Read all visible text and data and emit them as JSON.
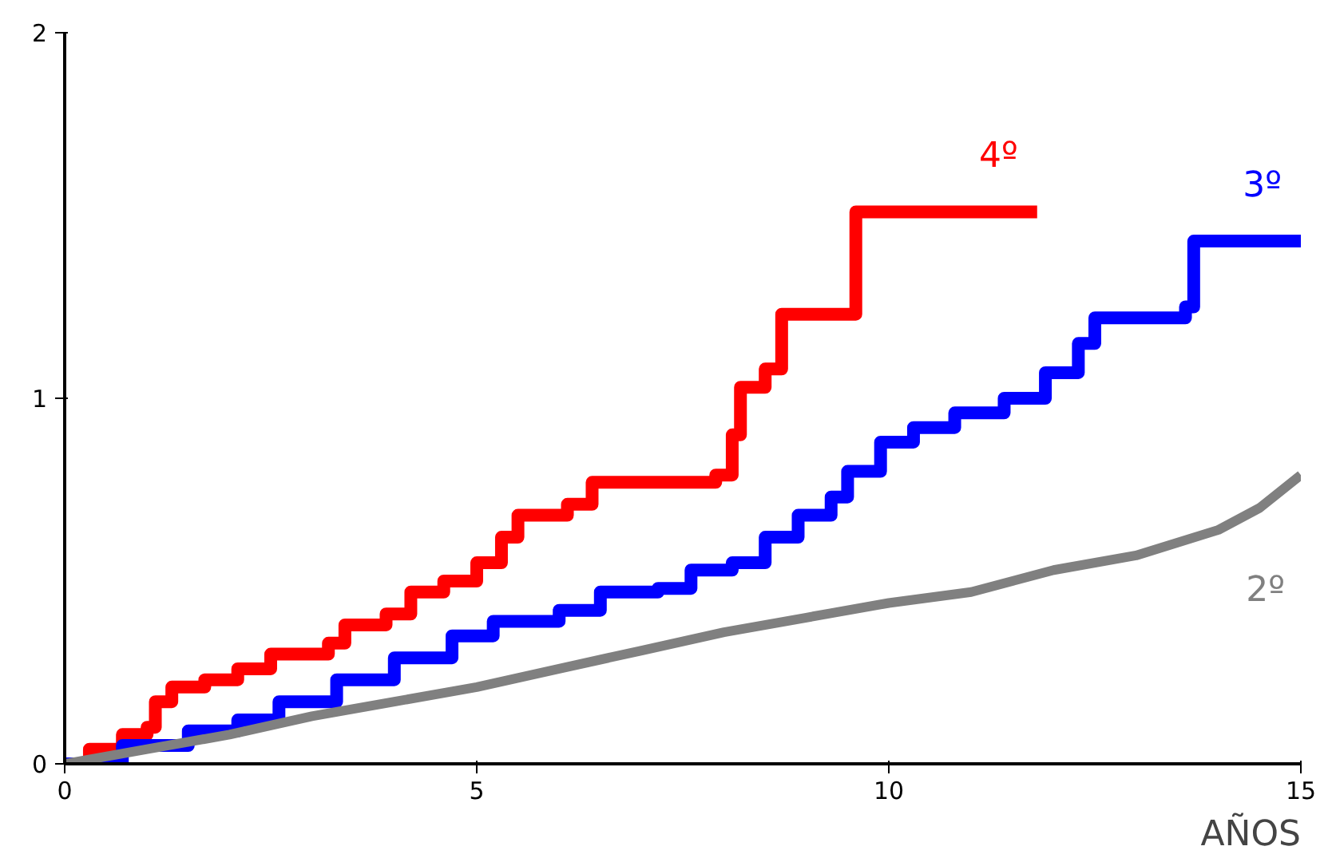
{
  "chart_data": {
    "type": "step",
    "xlabel": "AÑOS",
    "xlim": [
      0,
      15
    ],
    "ylim": [
      0,
      2
    ],
    "xticks": [
      0,
      5,
      10,
      15
    ],
    "yticks": [
      0,
      1,
      2
    ],
    "grid": false,
    "series": [
      {
        "name": "4º",
        "color": "#ff0000",
        "x": [
          0,
          0.3,
          0.7,
          1.0,
          1.1,
          1.3,
          1.7,
          2.1,
          2.5,
          3.2,
          3.4,
          3.9,
          4.2,
          4.6,
          5.0,
          5.3,
          5.5,
          6.1,
          6.4,
          7.9,
          8.1,
          8.2,
          8.5,
          8.7,
          9.6,
          11.8
        ],
        "values": [
          0,
          0.04,
          0.08,
          0.1,
          0.17,
          0.21,
          0.23,
          0.26,
          0.3,
          0.33,
          0.38,
          0.41,
          0.47,
          0.5,
          0.55,
          0.62,
          0.68,
          0.71,
          0.77,
          0.79,
          0.9,
          1.03,
          1.08,
          1.23,
          1.51,
          1.51
        ]
      },
      {
        "name": "3º",
        "color": "#0000ff",
        "x": [
          0,
          0.7,
          1.5,
          2.1,
          2.6,
          3.3,
          4.0,
          4.7,
          5.2,
          6.0,
          6.5,
          7.2,
          7.6,
          8.1,
          8.5,
          8.9,
          9.3,
          9.5,
          9.9,
          10.3,
          10.8,
          11.4,
          11.9,
          12.3,
          12.5,
          13.6,
          13.7,
          15
        ],
        "values": [
          0,
          0.05,
          0.09,
          0.12,
          0.17,
          0.23,
          0.29,
          0.35,
          0.39,
          0.42,
          0.47,
          0.48,
          0.53,
          0.55,
          0.62,
          0.68,
          0.73,
          0.8,
          0.88,
          0.92,
          0.96,
          1.0,
          1.07,
          1.15,
          1.22,
          1.25,
          1.43,
          1.43
        ]
      },
      {
        "name": "2º",
        "color": "#808080",
        "type": "line",
        "x": [
          0,
          1,
          2,
          3,
          4,
          5,
          6,
          7,
          8,
          9,
          10,
          11,
          11.5,
          12,
          13,
          14,
          14.5,
          15
        ],
        "values": [
          0,
          0.04,
          0.08,
          0.13,
          0.17,
          0.21,
          0.26,
          0.31,
          0.36,
          0.4,
          0.44,
          0.47,
          0.5,
          0.53,
          0.57,
          0.64,
          0.7,
          0.79
        ]
      }
    ]
  }
}
